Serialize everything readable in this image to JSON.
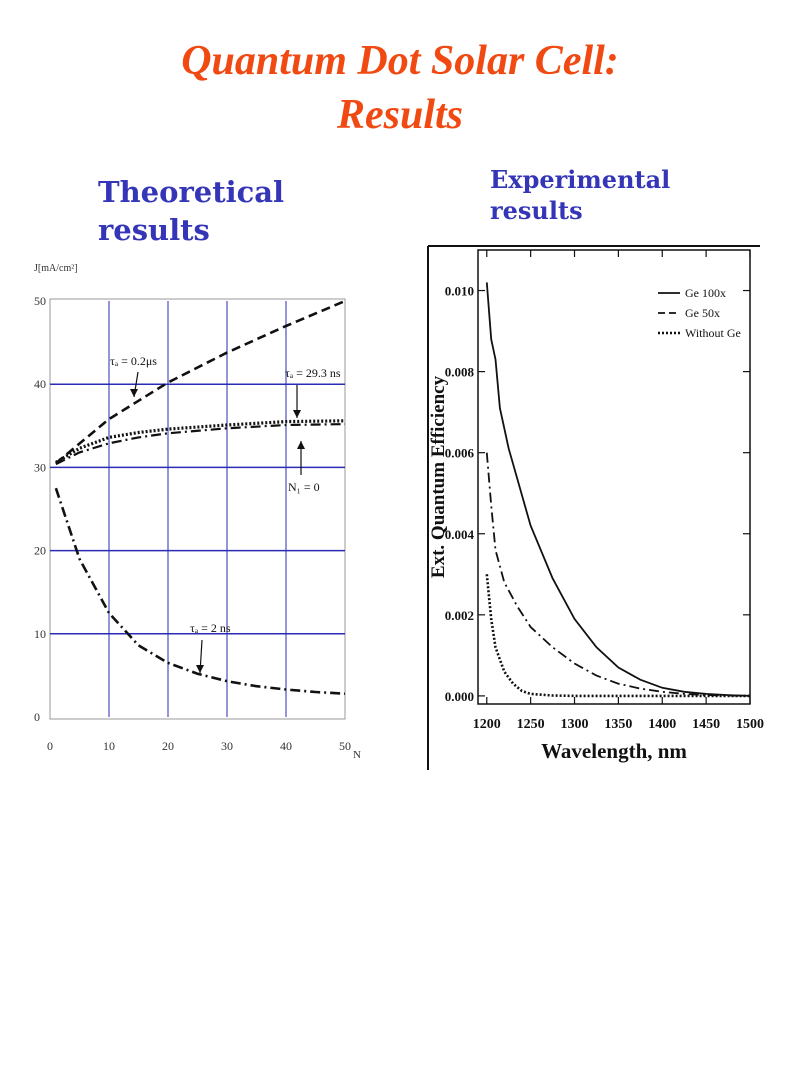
{
  "slide": {
    "title_line1": "Quantum Dot Solar Cell:",
    "title_line2": "Results",
    "theoretical_heading_1": "Theoretical",
    "theoretical_heading_2": "results",
    "experimental_heading_1": "Experimental",
    "experimental_heading_2": "results"
  },
  "chart_data": [
    {
      "type": "line",
      "ylabel": "J[mA/cm²]",
      "xlabel": "N",
      "xlim": [
        0,
        50
      ],
      "ylim": [
        0,
        50
      ],
      "x_ticks": [
        "0",
        "10",
        "20",
        "30",
        "40",
        "50"
      ],
      "y_ticks": [
        "0",
        "10",
        "20",
        "30",
        "40",
        "50"
      ],
      "grid": true,
      "grid_color": "#2b2bb5",
      "series": [
        {
          "label": "τₐ = 0.2μs",
          "style": "dashed",
          "x": [
            1,
            10,
            20,
            30,
            40,
            50
          ],
          "y": [
            30.5,
            35.8,
            40.2,
            43.8,
            47,
            50
          ]
        },
        {
          "label": "τₐ = 29.3 ns",
          "style": "dotted",
          "x": [
            1,
            5,
            10,
            15,
            20,
            30,
            40,
            50
          ],
          "y": [
            30.6,
            32.3,
            33.6,
            34.2,
            34.6,
            35.1,
            35.5,
            35.6
          ]
        },
        {
          "label": "N₁ = 0",
          "style": "dashdot",
          "x": [
            1,
            5,
            10,
            15,
            20,
            30,
            40,
            50
          ],
          "y": [
            30.4,
            31.8,
            32.9,
            33.6,
            34.1,
            34.7,
            35.1,
            35.2
          ]
        },
        {
          "label": "τₐ = 2 ns",
          "style": "dashdot",
          "x": [
            1,
            5,
            10,
            15,
            20,
            25,
            30,
            35,
            40,
            45,
            50
          ],
          "y": [
            27.5,
            19,
            12.5,
            8.6,
            6.5,
            5.2,
            4.3,
            3.7,
            3.3,
            3,
            2.8
          ]
        }
      ]
    },
    {
      "type": "line",
      "xlabel": "Wavelength, nm",
      "ylabel": "Ext. Quantum Efficiency",
      "xlim": [
        1190,
        1500
      ],
      "ylim": [
        -0.0002,
        0.011
      ],
      "x_ticks": [
        "1200",
        "1250",
        "1300",
        "1350",
        "1400",
        "1450",
        "1500"
      ],
      "y_ticks": [
        "0.000",
        "0.002",
        "0.004",
        "0.006",
        "0.008",
        "0.010"
      ],
      "legend": "top-right",
      "series": [
        {
          "name": "Ge 100x",
          "style": "solid",
          "x": [
            1200,
            1205,
            1210,
            1215,
            1225,
            1250,
            1275,
            1300,
            1325,
            1350,
            1375,
            1400,
            1425,
            1450,
            1475,
            1500
          ],
          "y": [
            0.0102,
            0.0088,
            0.0083,
            0.0071,
            0.0061,
            0.0042,
            0.0029,
            0.0019,
            0.0012,
            0.0007,
            0.0004,
            0.0002,
            0.0001,
            5e-05,
            2e-05,
            0.0
          ]
        },
        {
          "name": "Ge 50x",
          "style": "dashdot",
          "x": [
            1200,
            1205,
            1210,
            1220,
            1235,
            1250,
            1275,
            1300,
            1325,
            1350,
            1375,
            1400,
            1425,
            1450,
            1475,
            1500
          ],
          "y": [
            0.006,
            0.0047,
            0.0036,
            0.0028,
            0.0022,
            0.0017,
            0.0012,
            0.0008,
            0.0005,
            0.0003,
            0.00018,
            0.0001,
            5e-05,
            2e-05,
            1e-05,
            0.0
          ]
        },
        {
          "name": "Without Ge",
          "style": "dotted",
          "x": [
            1200,
            1205,
            1210,
            1220,
            1230,
            1240,
            1250,
            1275,
            1300,
            1350,
            1400,
            1450,
            1500
          ],
          "y": [
            0.003,
            0.0019,
            0.0012,
            0.0006,
            0.0003,
            0.00012,
            5e-05,
            1e-05,
            0.0,
            0.0,
            0.0,
            0.0,
            0.0
          ]
        }
      ]
    }
  ]
}
